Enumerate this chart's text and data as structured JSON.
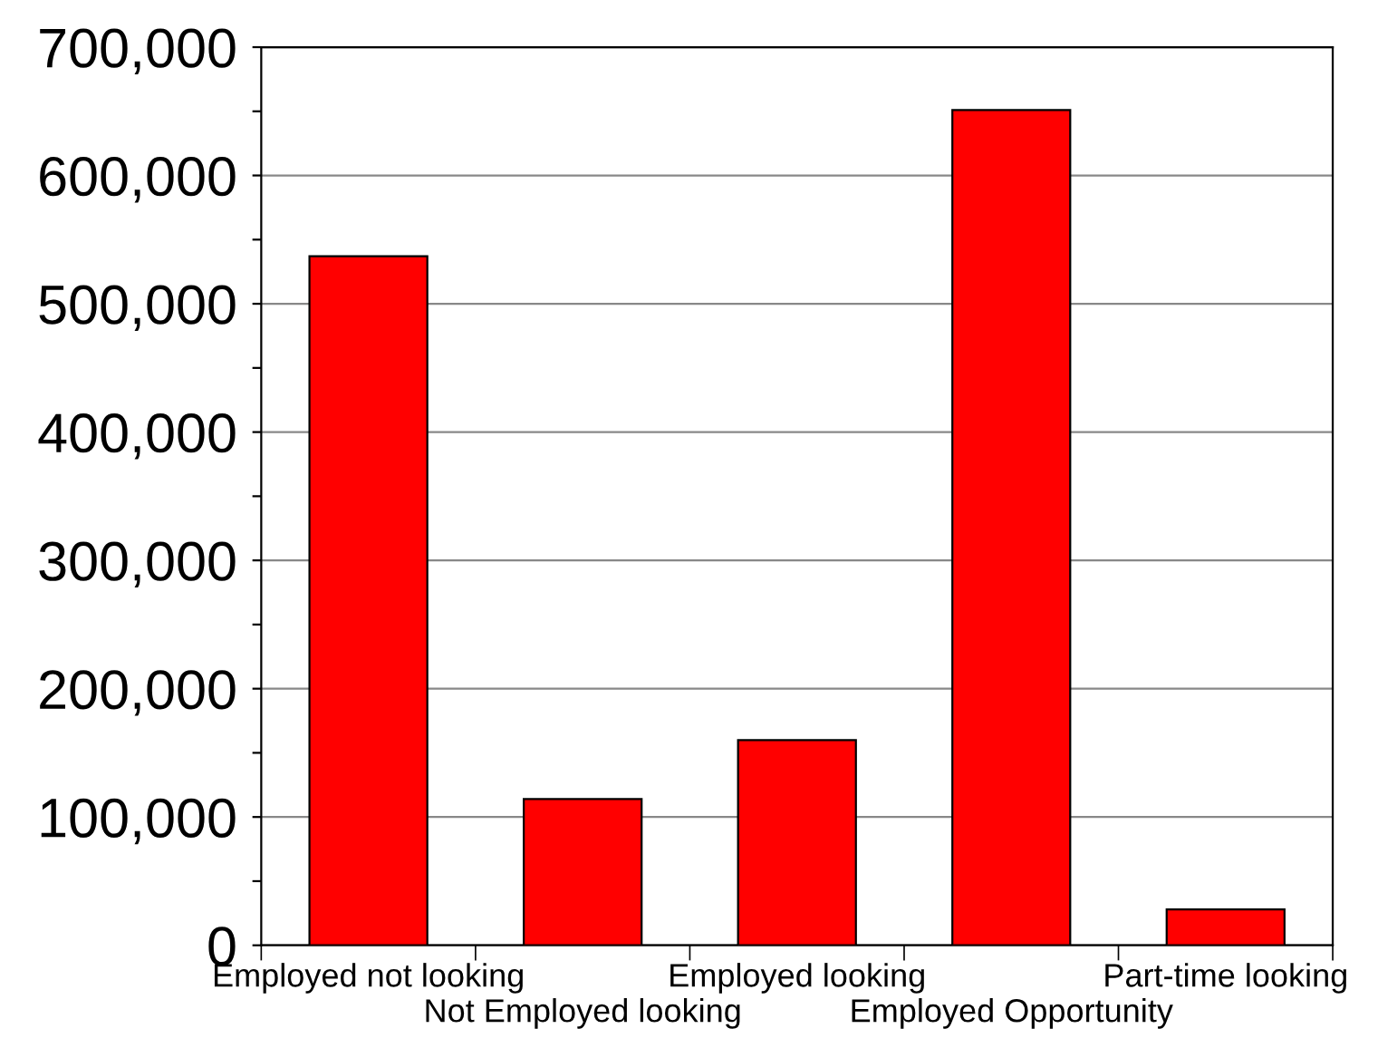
{
  "chart_data": {
    "type": "bar",
    "categories": [
      "Employed not looking",
      "Not Employed looking",
      "Employed looking",
      "Employed Opportunity",
      "Part-time looking"
    ],
    "values": [
      537000,
      114000,
      160000,
      651000,
      28000
    ],
    "color": "#ff0000",
    "ylim": [
      0,
      700000
    ],
    "yticks": [
      {
        "value": 0,
        "label": "0"
      },
      {
        "value": 50000,
        "label": null
      },
      {
        "value": 100000,
        "label": "100,000"
      },
      {
        "value": 150000,
        "label": null
      },
      {
        "value": 200000,
        "label": "200,000"
      },
      {
        "value": 250000,
        "label": null
      },
      {
        "value": 300000,
        "label": "300,000"
      },
      {
        "value": 350000,
        "label": null
      },
      {
        "value": 400000,
        "label": "400,000"
      },
      {
        "value": 450000,
        "label": null
      },
      {
        "value": 500000,
        "label": "500,000"
      },
      {
        "value": 550000,
        "label": null
      },
      {
        "value": 600000,
        "label": "600,000"
      },
      {
        "value": 650000,
        "label": null
      },
      {
        "value": 700000,
        "label": "700,000"
      }
    ],
    "grid": "y"
  }
}
